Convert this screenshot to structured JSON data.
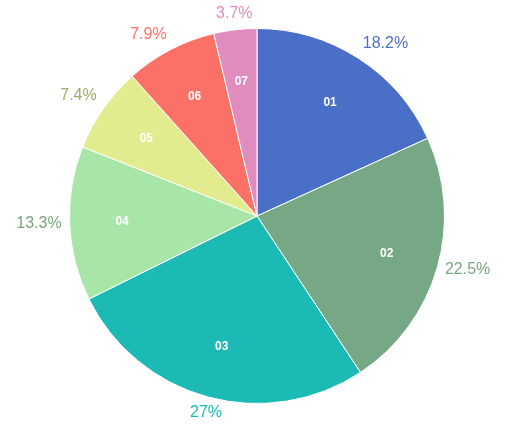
{
  "chart_data": {
    "type": "pie",
    "categories": [
      "01",
      "02",
      "03",
      "04",
      "05",
      "06",
      "07"
    ],
    "values": [
      18.2,
      22.5,
      27,
      13.3,
      7.4,
      7.9,
      3.7
    ],
    "value_labels": [
      "18.2%",
      "22.5%",
      "27%",
      "13.3%",
      "7.4%",
      "7.9%",
      "3.7%"
    ],
    "colors": [
      "#4a6fc6",
      "#76a886",
      "#1cbab4",
      "#a8e6a8",
      "#e2ec8e",
      "#fb7167",
      "#e08cbf"
    ],
    "data_labels": true
  }
}
